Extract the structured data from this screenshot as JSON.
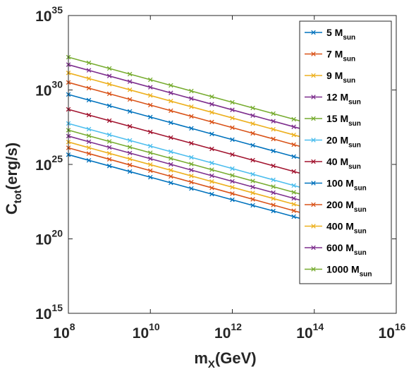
{
  "chart_data": {
    "type": "line",
    "title": "",
    "xlabel": "m",
    "xlabel_sub": "X",
    "xlabel_suffix": "(GeV)",
    "ylabel": "C",
    "ylabel_sub": "tot",
    "ylabel_suffix": "(erg/s)",
    "x_scale": "log",
    "y_scale": "log",
    "xlim": [
      100000000.0,
      1e+16
    ],
    "ylim": [
      1000000000000000.0,
      1e+35
    ],
    "x_ticks": [
      {
        "base": "10",
        "exp": "8",
        "value": 100000000.0
      },
      {
        "base": "10",
        "exp": "10",
        "value": 10000000000.0
      },
      {
        "base": "10",
        "exp": "12",
        "value": 1000000000000.0
      },
      {
        "base": "10",
        "exp": "14",
        "value": 100000000000000.0
      },
      {
        "base": "10",
        "exp": "16",
        "value": 1e+16
      }
    ],
    "y_ticks": [
      {
        "base": "10",
        "exp": "15",
        "value": 1000000000000000.0
      },
      {
        "base": "10",
        "exp": "20",
        "value": 1e+20
      },
      {
        "base": "10",
        "exp": "25",
        "value": 1e+25
      },
      {
        "base": "10",
        "exp": "30",
        "value": 1e+30
      },
      {
        "base": "10",
        "exp": "35",
        "value": 1e+35
      }
    ],
    "grid": false,
    "legend_position": "top-right",
    "marker": "x",
    "x": [
      100000000.0,
      316000000.0,
      1000000000.0,
      3160000000.0,
      10000000000.0,
      31600000000.0,
      100000000000.0,
      316000000000.0,
      1000000000000.0,
      3160000000000.0,
      10000000000000.0,
      31600000000000.0,
      100000000000000.0
    ],
    "series": [
      {
        "name": "5 M",
        "name_sub": "sun",
        "color": "#0072BD",
        "y_start": 4.5e+25,
        "y_end": 1.3e+21
      },
      {
        "name": "7 M",
        "name_sub": "sun",
        "color": "#D95319",
        "y_start": 1.3e+26,
        "y_end": 3.2e+21
      },
      {
        "name": "9 M",
        "name_sub": "sun",
        "color": "#EDB120",
        "y_start": 3.2e+26,
        "y_end": 8.9e+21
      },
      {
        "name": "12 M",
        "name_sub": "sun",
        "color": "#7E2F8E",
        "y_start": 8e+26,
        "y_end": 2.2e+22
      },
      {
        "name": "15 M",
        "name_sub": "sun",
        "color": "#77AC30",
        "y_start": 2e+27,
        "y_end": 5.6e+22
      },
      {
        "name": "20 M",
        "name_sub": "sun",
        "color": "#4DBEEE",
        "y_start": 5.6e+27,
        "y_end": 1.6e+23
      },
      {
        "name": "40 M",
        "name_sub": "sun",
        "color": "#A2142F",
        "y_start": 5e+28,
        "y_end": 1.4e+24
      },
      {
        "name": "100 M",
        "name_sub": "sun",
        "color": "#0072BD",
        "y_start": 5e+29,
        "y_end": 1.4e+25
      },
      {
        "name": "200 M",
        "name_sub": "sun",
        "color": "#D95319",
        "y_start": 3.2e+30,
        "y_end": 8.9e+25
      },
      {
        "name": "400 M",
        "name_sub": "sun",
        "color": "#EDB120",
        "y_start": 1.4e+31,
        "y_end": 4e+26
      },
      {
        "name": "600 M",
        "name_sub": "sun",
        "color": "#7E2F8E",
        "y_start": 5e+31,
        "y_end": 1.4e+27
      },
      {
        "name": "1000 M",
        "name_sub": "sun",
        "color": "#77AC30",
        "y_start": 1.6e+32,
        "y_end": 4.5e+27
      }
    ]
  }
}
